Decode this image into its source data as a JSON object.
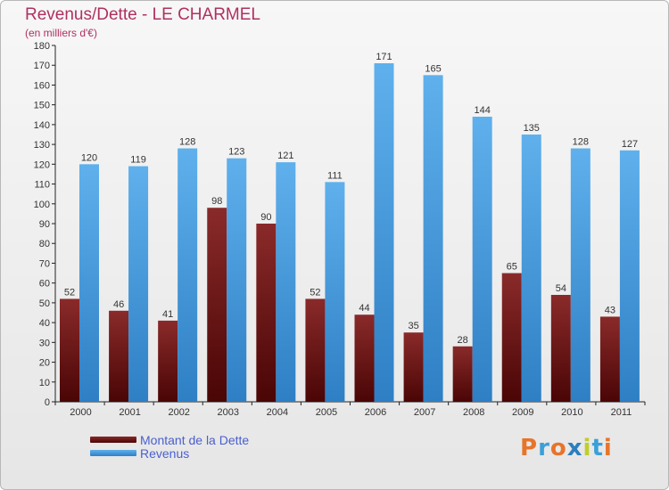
{
  "title": "Revenus/Dette - LE CHARMEL",
  "subtitle": "(en milliers d'€)",
  "logo": {
    "text": "Proxiti",
    "colors": [
      "#e8742a",
      "#3aa0d8",
      "#e8742a",
      "#2b7fc0",
      "#c0ce2a",
      "#3aa0d8",
      "#e8742a"
    ]
  },
  "colors": {
    "dette_top": "#8a2a2a",
    "dette_bottom": "#4a0505",
    "revenus_top": "#5fb0ec",
    "revenus_bottom": "#2e7fc4",
    "title": "#b03060",
    "legend_text": "#4a5fd0"
  },
  "chart_data": {
    "type": "bar",
    "categories": [
      "2000",
      "2001",
      "2002",
      "2003",
      "2004",
      "2005",
      "2006",
      "2007",
      "2008",
      "2009",
      "2010",
      "2011"
    ],
    "series": [
      {
        "name": "Montant de la Dette",
        "values": [
          52,
          46,
          41,
          98,
          90,
          52,
          44,
          35,
          28,
          65,
          54,
          43
        ]
      },
      {
        "name": "Revenus",
        "values": [
          120,
          119,
          128,
          123,
          121,
          111,
          171,
          165,
          144,
          135,
          128,
          127
        ]
      }
    ],
    "ylim": [
      0,
      180
    ],
    "ytick_step": 10,
    "grid": false,
    "legend": "bottom-left"
  }
}
